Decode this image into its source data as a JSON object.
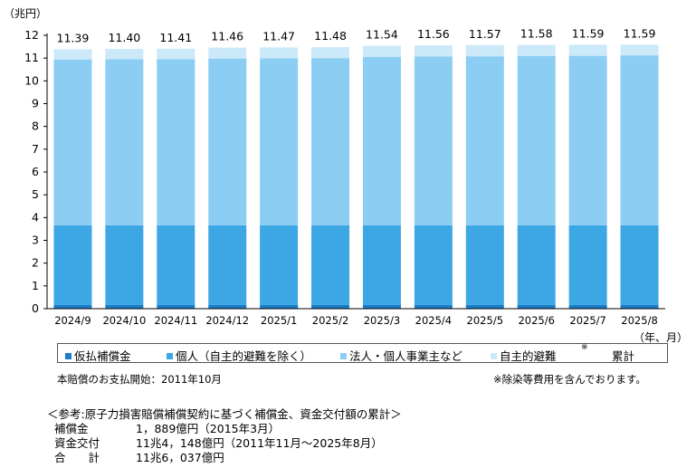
{
  "chart_data": {
    "type": "bar",
    "stacked": true,
    "ylabel": "（兆円）",
    "xlabel": "（年、月）",
    "ylim": [
      0,
      12
    ],
    "yticks": [
      0,
      1,
      2,
      3,
      4,
      5,
      6,
      7,
      8,
      9,
      10,
      11,
      12
    ],
    "categories": [
      "2024/9",
      "2024/10",
      "2024/11",
      "2024/12",
      "2025/1",
      "2025/2",
      "2025/3",
      "2025/4",
      "2025/5",
      "2025/6",
      "2025/7",
      "2025/8"
    ],
    "totals": [
      "11.39",
      "11.40",
      "11.41",
      "11.46",
      "11.47",
      "11.48",
      "11.54",
      "11.56",
      "11.57",
      "11.58",
      "11.59",
      "11.59"
    ],
    "series": [
      {
        "name": "仮払補償金",
        "color": "#1a7cc6",
        "values": [
          0.16,
          0.16,
          0.16,
          0.16,
          0.16,
          0.16,
          0.16,
          0.16,
          0.16,
          0.16,
          0.16,
          0.16
        ]
      },
      {
        "name": "個人（自主的避難を除く）",
        "color": "#3da6e4",
        "values": [
          3.5,
          3.5,
          3.5,
          3.5,
          3.5,
          3.5,
          3.5,
          3.5,
          3.5,
          3.5,
          3.5,
          3.5
        ]
      },
      {
        "name": "法人・個人事業主など",
        "color": "#8ccdf3",
        "values": [
          7.28,
          7.29,
          7.29,
          7.32,
          7.33,
          7.34,
          7.39,
          7.41,
          7.42,
          7.43,
          7.44,
          7.46
        ]
      },
      {
        "name": "自主的避難",
        "color": "#cbe9f9",
        "values": [
          0.45,
          0.45,
          0.46,
          0.48,
          0.48,
          0.48,
          0.49,
          0.49,
          0.49,
          0.49,
          0.49,
          0.47
        ]
      }
    ],
    "legend_note_mark": "※",
    "legend_total_label": "累計"
  },
  "notes": {
    "start": "本賠償のお支払開始：2011年10月",
    "decon": "※除染等費用を含んでおります。"
  },
  "reference": {
    "title": "＜参考:原子力損害賠償補償契約に基づく補償金、資金交付額の累計＞",
    "rows": [
      {
        "label": "補償金",
        "value": "1，889億円（2015年3月）"
      },
      {
        "label": "資金交付",
        "value": "11兆4，148億円（2011年11月～2025年8月）"
      },
      {
        "label": "合　　計",
        "value": "11兆6，037億円"
      }
    ]
  }
}
